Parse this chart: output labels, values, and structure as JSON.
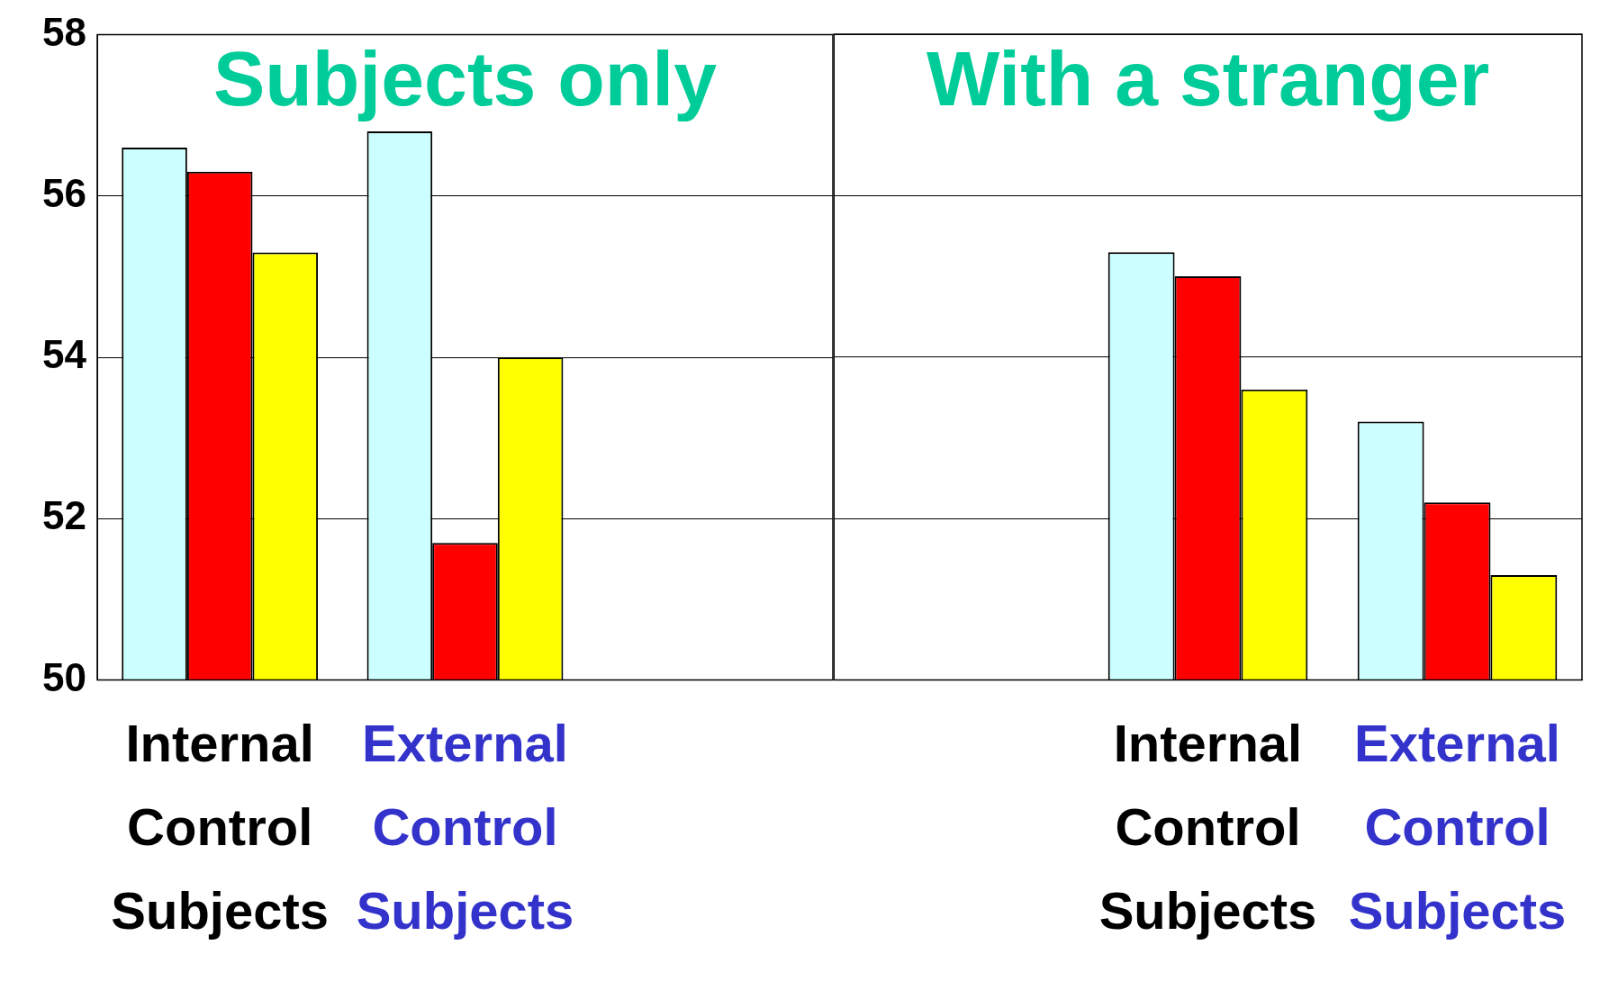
{
  "chart_data": [
    {
      "type": "bar",
      "title": "Subjects only",
      "categories": [
        "Internal Control Subjects",
        "External Control Subjects",
        null
      ],
      "series": [
        {
          "color": "#ccffff",
          "values": [
            56.6,
            56.8,
            null
          ]
        },
        {
          "color": "#ff0000",
          "values": [
            56.3,
            51.7,
            null
          ]
        },
        {
          "color": "#ffff00",
          "values": [
            55.3,
            54.0,
            null
          ]
        }
      ],
      "ylim": [
        50,
        58
      ],
      "yticks": [
        50,
        52,
        54,
        56,
        58
      ],
      "grid": "y",
      "legend": false
    },
    {
      "type": "bar",
      "title": "With a stranger",
      "categories": [
        null,
        "Internal Control Subjects",
        "External Control Subjects"
      ],
      "series": [
        {
          "color": "#ccffff",
          "values": [
            null,
            55.3,
            53.2
          ]
        },
        {
          "color": "#ff0000",
          "values": [
            null,
            55.0,
            52.2
          ]
        },
        {
          "color": "#ffff00",
          "values": [
            null,
            53.6,
            51.3
          ]
        }
      ],
      "ylim": [
        50,
        58
      ],
      "yticks": [
        50,
        52,
        54,
        56,
        58
      ],
      "grid": "y",
      "legend": false,
      "tick_labels": "x"
    }
  ]
}
